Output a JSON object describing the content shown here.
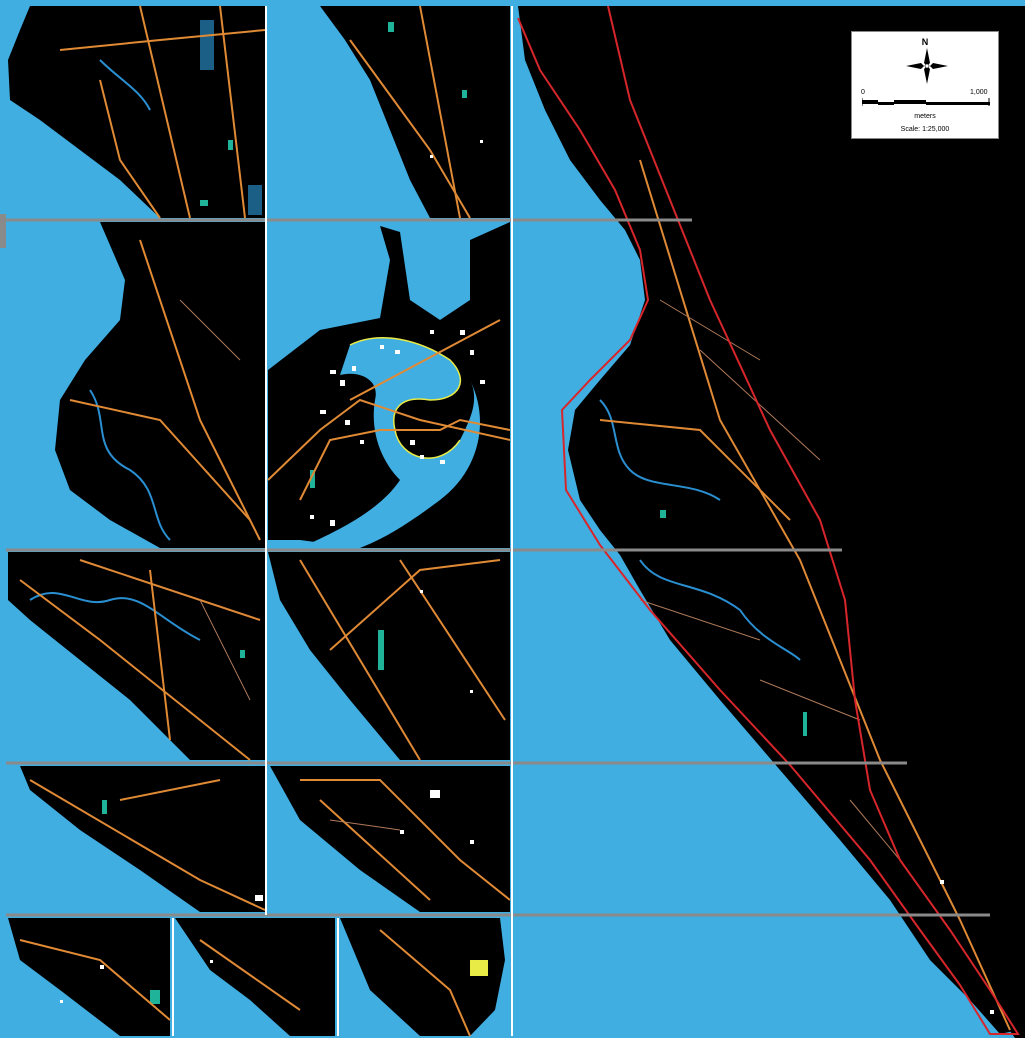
{
  "colors": {
    "water": "#41aee2",
    "land": "#000000",
    "road": "#e08a35",
    "road_secondary": "#b07a5a",
    "river": "#2a8fd1",
    "pond": "#1fb39a",
    "building": "#ffffff",
    "highlight": "#e8ea46",
    "boundary": "#d7262b",
    "grid": "#8a8a8a",
    "dark_water": "#1b5e86"
  },
  "legend": {
    "north_label": "N",
    "north_icon": "compass-rose-icon",
    "scale_start": "0",
    "scale_end": "1,000",
    "units": "meters",
    "scale_text": "Scale: 1:25,000"
  }
}
